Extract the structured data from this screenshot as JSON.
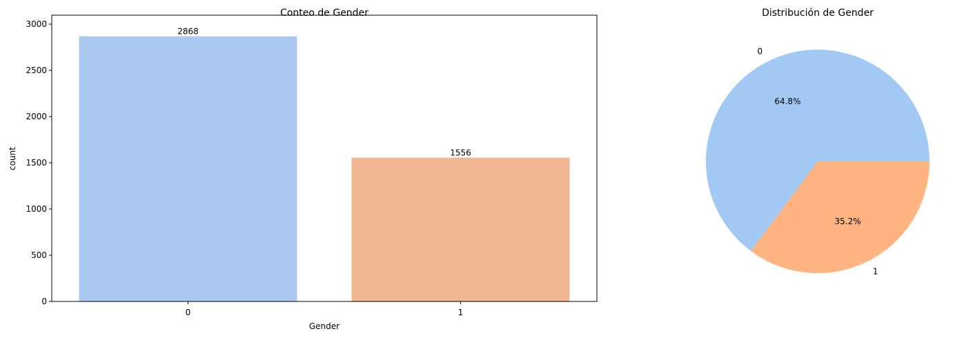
{
  "chart_data": [
    {
      "type": "bar",
      "title": "Conteo de Gender",
      "xlabel": "Gender",
      "ylabel": "count",
      "categories": [
        "0",
        "1"
      ],
      "values": [
        2868,
        1556
      ],
      "data_labels": [
        "2868",
        "1556"
      ],
      "ylim": [
        0,
        3000
      ],
      "yticks": [
        0,
        500,
        1000,
        1500,
        2000,
        2500,
        3000
      ],
      "ytick_labels": [
        "0",
        "500",
        "1000",
        "1500",
        "2000",
        "2500",
        "3000"
      ],
      "colors": [
        "#abc9ee",
        "#f0b892"
      ],
      "grid": false,
      "legend": "none"
    },
    {
      "type": "pie",
      "title": "Distribución de Gender",
      "labels": [
        "0",
        "1"
      ],
      "values": [
        64.8,
        35.2
      ],
      "pct_labels": [
        "64.8%",
        "35.2%"
      ],
      "colors": [
        "#a1c9f4",
        "#ffb482"
      ],
      "legend": "none"
    }
  ]
}
